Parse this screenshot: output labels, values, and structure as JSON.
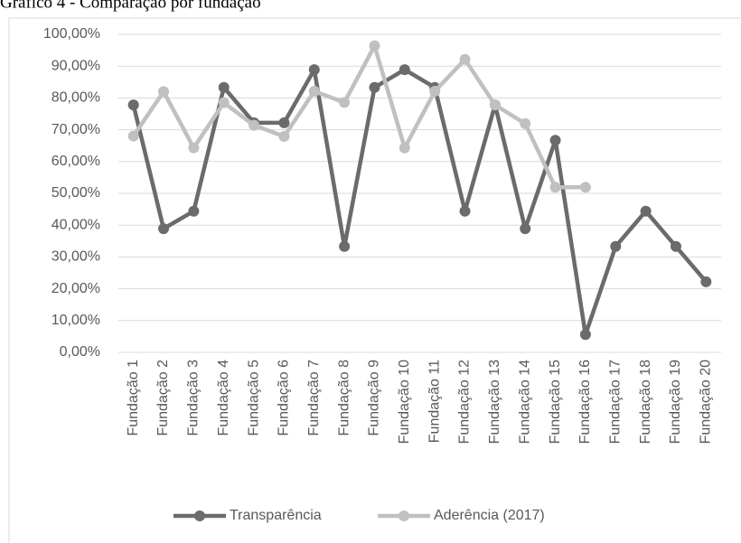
{
  "chart_data": {
    "type": "line",
    "title": "Gráfico 4 - Comparação por fundação",
    "categories": [
      "Fundação 1",
      "Fundação 2",
      "Fundação 3",
      "Fundação 4",
      "Fundação 5",
      "Fundação 6",
      "Fundação 7",
      "Fundação 8",
      "Fundação 9",
      "Fundação 10",
      "Fundação 11",
      "Fundação 12",
      "Fundação 13",
      "Fundação 14",
      "Fundação 15",
      "Fundação 16",
      "Fundação 17",
      "Fundação 18",
      "Fundação 19",
      "Fundação 20"
    ],
    "series": [
      {
        "name": "Transparência",
        "color": "#6b6b6b",
        "values": [
          77.8,
          38.9,
          44.4,
          83.3,
          72.2,
          72.2,
          88.9,
          33.3,
          83.3,
          88.9,
          83.3,
          44.4,
          77.8,
          38.9,
          66.7,
          5.6,
          33.3,
          44.4,
          33.3,
          22.2
        ]
      },
      {
        "name": "Aderência (2017)",
        "color": "#c0c0c0",
        "values": [
          68.0,
          82.0,
          64.3,
          78.5,
          71.4,
          67.9,
          82.1,
          78.6,
          96.4,
          64.3,
          82.1,
          92.1,
          77.8,
          71.9,
          51.9,
          51.9,
          null,
          null,
          null,
          null
        ]
      }
    ],
    "ylim": [
      0,
      100
    ],
    "yticks": [
      {
        "value": 0,
        "label": "0,00%"
      },
      {
        "value": 10,
        "label": "10,00%"
      },
      {
        "value": 20,
        "label": "20,00%"
      },
      {
        "value": 30,
        "label": "30,00%"
      },
      {
        "value": 40,
        "label": "40,00%"
      },
      {
        "value": 50,
        "label": "50,00%"
      },
      {
        "value": 60,
        "label": "60,00%"
      },
      {
        "value": 70,
        "label": "70,00%"
      },
      {
        "value": 80,
        "label": "80,00%"
      },
      {
        "value": 90,
        "label": "90,00%"
      },
      {
        "value": 100,
        "label": "100,00%"
      }
    ],
    "grid": true,
    "legend": "bottom"
  }
}
